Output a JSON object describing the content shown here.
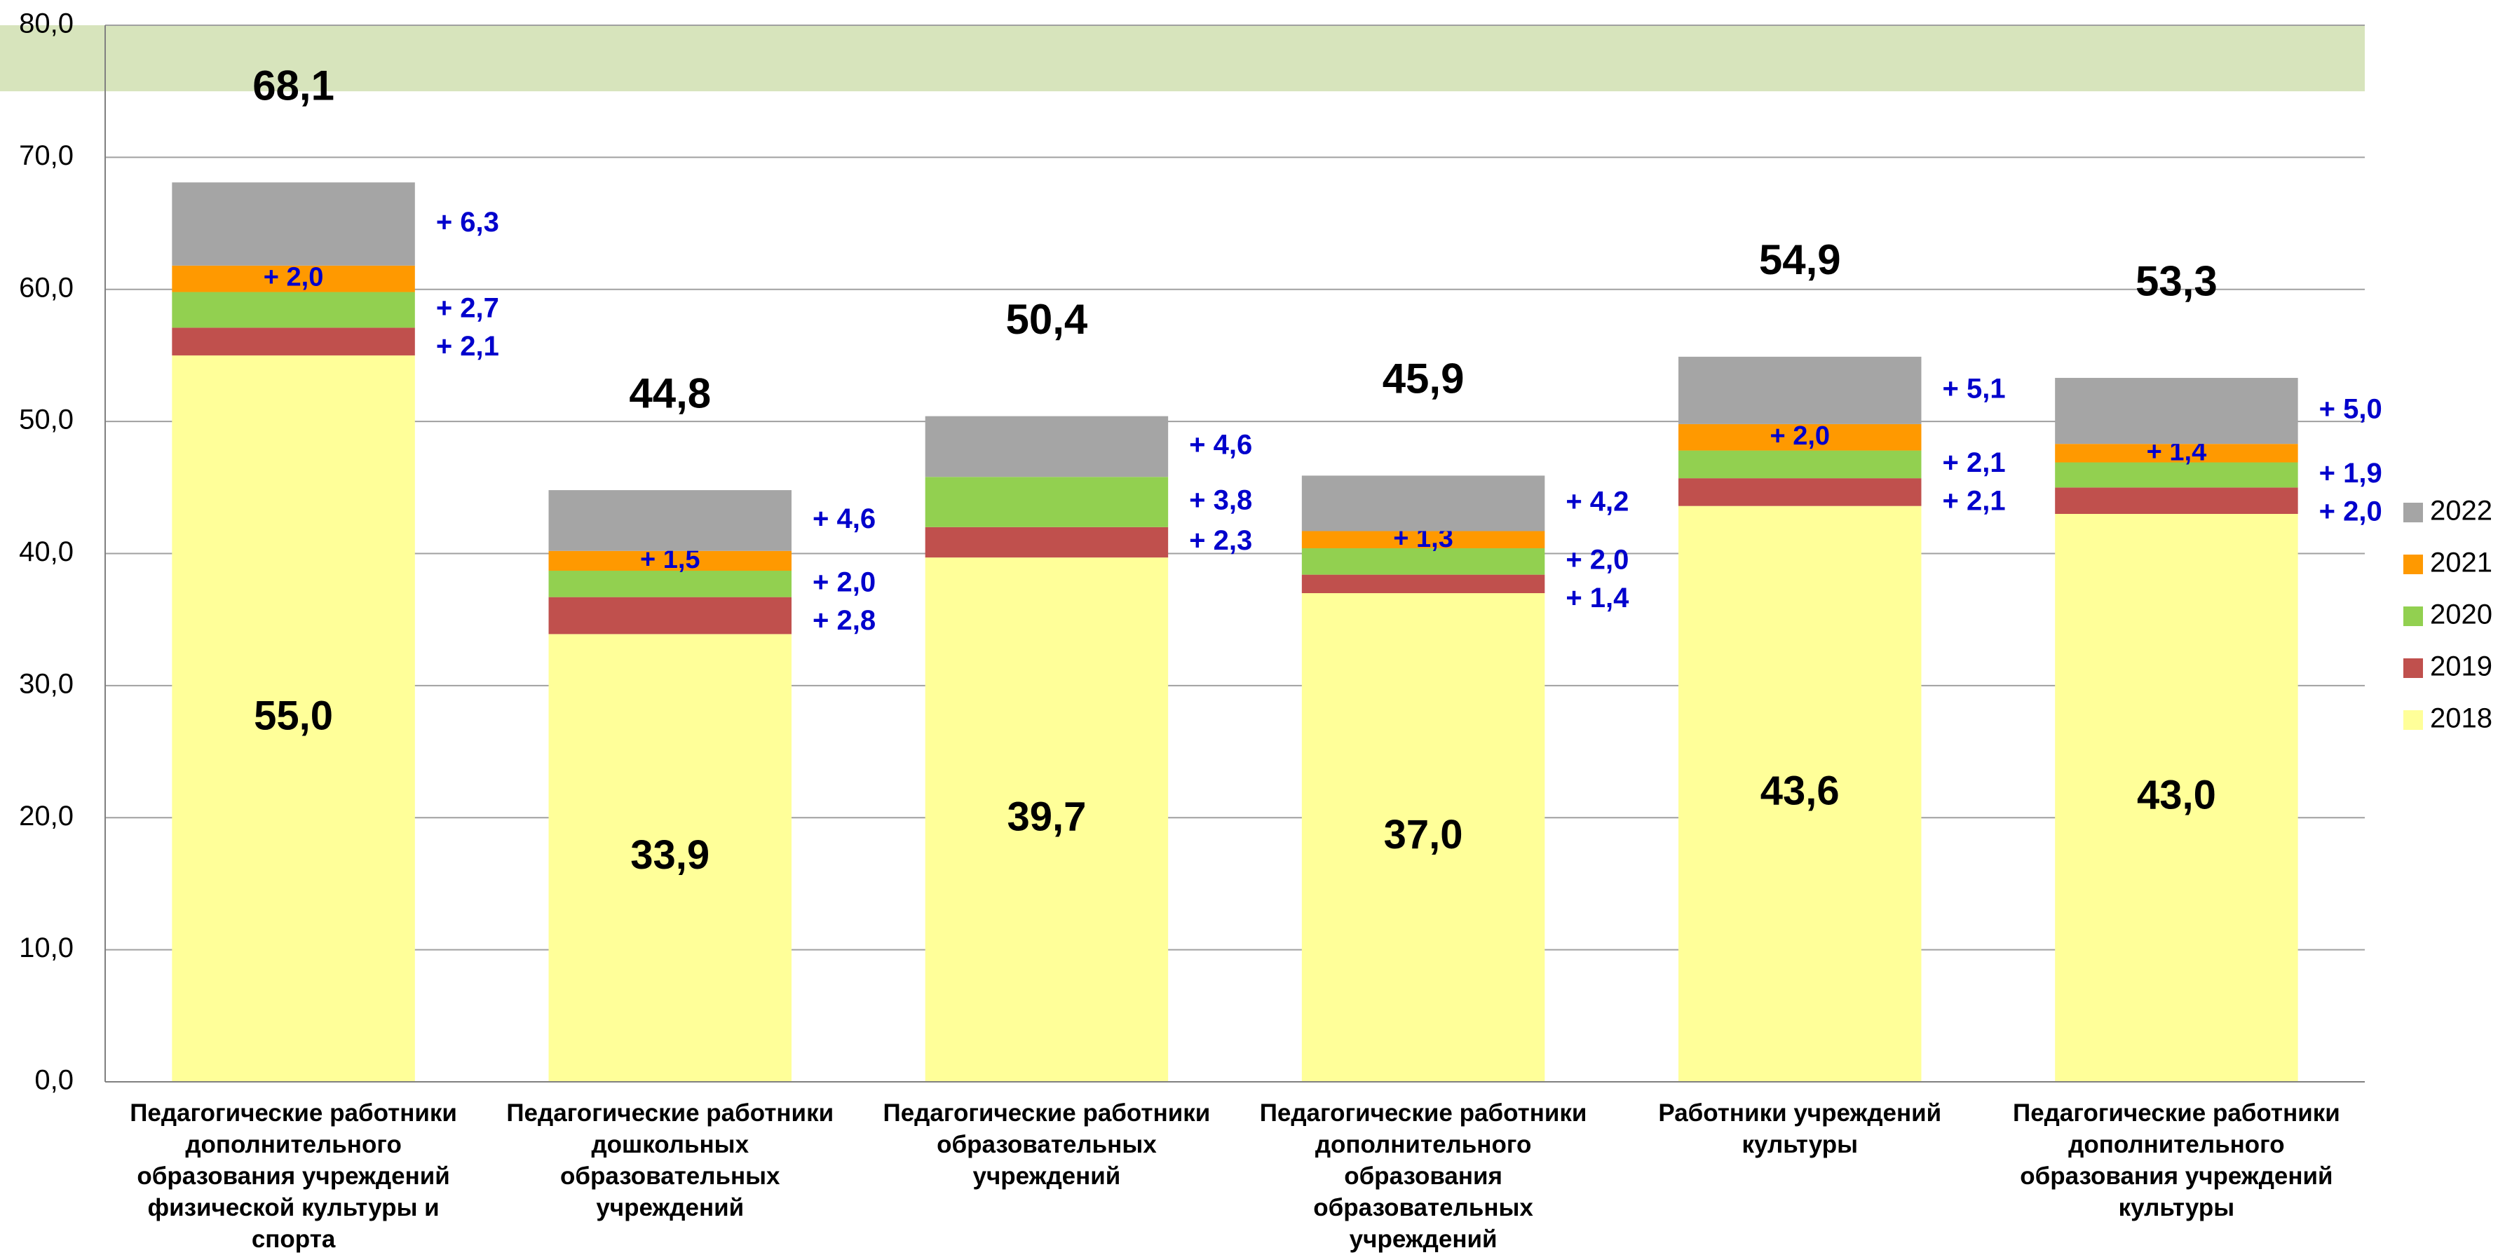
{
  "chart_data": {
    "type": "stacked_bar",
    "categories": [
      "Педагогические работники дополнительного образования учреждений физической культуры и спорта",
      "Педагогические работники дошкольных образовательных учреждений",
      "Педагогические работники образовательных учреждений",
      "Педагогические работники дополнительного образования образовательных учреждений",
      "Работники учреждений культуры",
      "Педагогические работники дополнительного образования учреждений культуры"
    ],
    "series": [
      {
        "name": "2018",
        "color": "#ffff99",
        "values": [
          55.0,
          33.9,
          39.7,
          37.0,
          43.6,
          43.0
        ],
        "value_labels": [
          "55,0",
          "33,9",
          "39,7",
          "37,0",
          "43,6",
          "43,0"
        ]
      },
      {
        "name": "2019",
        "color": "#c0504d",
        "values": [
          2.1,
          2.8,
          2.3,
          1.4,
          2.1,
          2.0
        ],
        "value_labels": [
          "+ 2,1",
          "+ 2,8",
          "+ 2,3",
          "+ 1,4",
          "+ 2,1",
          "+ 2,0"
        ]
      },
      {
        "name": "2020",
        "color": "#92d050",
        "values": [
          2.7,
          2.0,
          3.8,
          2.0,
          2.1,
          1.9
        ],
        "value_labels": [
          "+ 2,7",
          "+ 2,0",
          "+ 3,8",
          "+ 2,0",
          "+ 2,1",
          "+ 1,9"
        ]
      },
      {
        "name": "2021",
        "color": "#ff9900",
        "values": [
          2.0,
          1.5,
          0,
          1.3,
          2.0,
          1.4
        ],
        "value_labels": [
          "+ 2,0",
          "+ 1,5",
          null,
          "+ 1,3",
          "+ 2,0",
          "+ 1,4"
        ]
      },
      {
        "name": "2022",
        "color": "#a5a5a5",
        "values": [
          6.3,
          4.6,
          4.6,
          4.2,
          5.1,
          5.0
        ],
        "value_labels": [
          "+ 6,3",
          "+ 4,6",
          "+ 4,6",
          "+ 4,2",
          "+ 5,1",
          "+ 5,0"
        ]
      }
    ],
    "totals": [
      68.1,
      44.8,
      50.4,
      45.9,
      54.9,
      53.3
    ],
    "total_labels": [
      "68,1",
      "44,8",
      "50,4",
      "45,9",
      "54,9",
      "53,3"
    ],
    "highlight_range": [
      75,
      80
    ],
    "highlight_color": "#d7e4bc",
    "ylim": [
      0,
      80
    ],
    "yticks": [
      {
        "value": 0,
        "label": "0,0"
      },
      {
        "value": 10,
        "label": "10,0"
      },
      {
        "value": 20,
        "label": "20,0"
      },
      {
        "value": 30,
        "label": "30,0"
      },
      {
        "value": 40,
        "label": "40,0"
      },
      {
        "value": 50,
        "label": "50,0"
      },
      {
        "value": 60,
        "label": "60,0"
      },
      {
        "value": 70,
        "label": "70,0"
      },
      {
        "value": 80,
        "label": "80,0"
      }
    ],
    "grid": true,
    "legend": "right"
  }
}
